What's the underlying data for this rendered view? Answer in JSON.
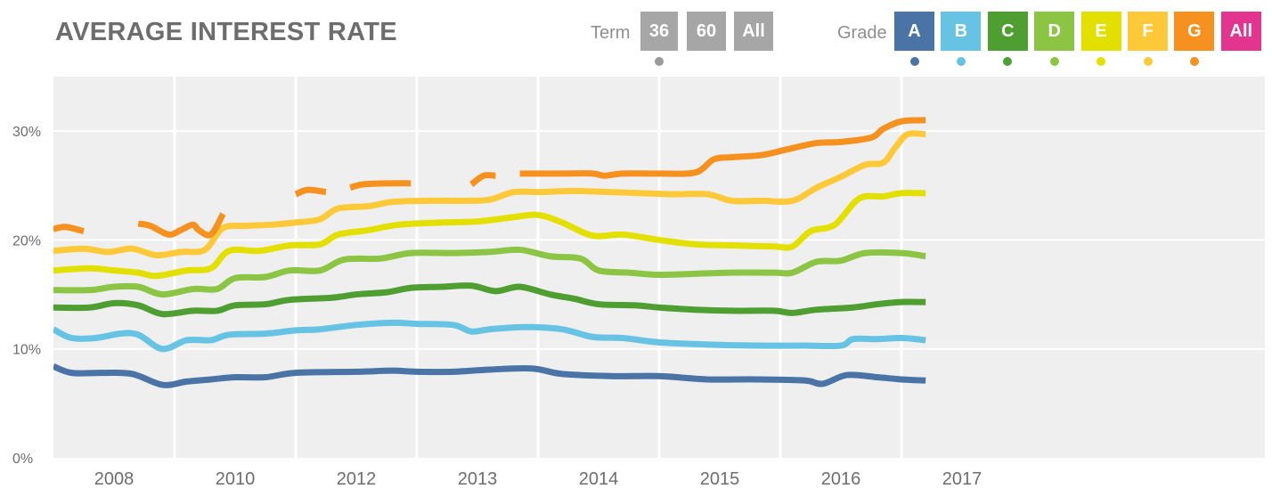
{
  "title": "AVERAGE INTEREST RATE",
  "term": {
    "label": "Term",
    "options": [
      "36",
      "60",
      "All"
    ],
    "button_color": "#a6a6a6",
    "indicator_color": "#9a9a9a"
  },
  "grade": {
    "label": "Grade",
    "options": [
      {
        "label": "A",
        "color": "#4a73a6"
      },
      {
        "label": "B",
        "color": "#67c3e3"
      },
      {
        "label": "C",
        "color": "#4f9e32"
      },
      {
        "label": "D",
        "color": "#8cc443"
      },
      {
        "label": "E",
        "color": "#e3e000"
      },
      {
        "label": "F",
        "color": "#fec938"
      },
      {
        "label": "G",
        "color": "#f6901e"
      },
      {
        "label": "All",
        "color": "#e3358f"
      }
    ]
  },
  "chart_data": {
    "type": "line",
    "ylim": [
      0,
      35
    ],
    "y_ticks": [
      0,
      10,
      20,
      30
    ],
    "y_tick_labels": [
      "0%",
      "10%",
      "20%",
      "30%"
    ],
    "xlim": [
      2007.0,
      2017.0
    ],
    "x_ticks": [
      {
        "value": 2007.5,
        "label": "2008"
      },
      {
        "value": 2008.5,
        "label": "2010"
      },
      {
        "value": 2009.5,
        "label": "2012"
      },
      {
        "value": 2010.5,
        "label": "2013"
      },
      {
        "value": 2011.5,
        "label": "2014"
      },
      {
        "value": 2012.5,
        "label": "2015"
      },
      {
        "value": 2013.5,
        "label": "2016"
      },
      {
        "value": 2014.5,
        "label": "2017"
      }
    ],
    "gridlines_x": [
      2008.0,
      2009.0,
      2010.0,
      2011.0,
      2012.0,
      2013.0,
      2014.0
    ],
    "grid": true,
    "series": [
      {
        "color": "#4a73a6",
        "segments": [
          [
            [
              2007.0,
              8.4
            ],
            [
              2007.15,
              7.8
            ],
            [
              2007.4,
              7.8
            ],
            [
              2007.65,
              7.7
            ],
            [
              2007.9,
              6.7
            ],
            [
              2008.1,
              7.0
            ],
            [
              2008.3,
              7.2
            ],
            [
              2008.5,
              7.4
            ],
            [
              2008.75,
              7.4
            ],
            [
              2009.0,
              7.8
            ],
            [
              2009.5,
              7.9
            ],
            [
              2009.8,
              8.0
            ],
            [
              2010.0,
              7.9
            ],
            [
              2010.3,
              7.9
            ],
            [
              2010.6,
              8.1
            ],
            [
              2010.95,
              8.2
            ],
            [
              2011.2,
              7.7
            ],
            [
              2011.6,
              7.5
            ],
            [
              2012.0,
              7.5
            ],
            [
              2012.4,
              7.2
            ],
            [
              2012.8,
              7.2
            ],
            [
              2013.2,
              7.1
            ],
            [
              2013.35,
              6.8
            ],
            [
              2013.55,
              7.6
            ],
            [
              2013.8,
              7.4
            ],
            [
              2014.0,
              7.2
            ],
            [
              2014.2,
              7.1
            ]
          ]
        ]
      },
      {
        "color": "#67c3e3",
        "segments": [
          [
            [
              2007.0,
              11.8
            ],
            [
              2007.15,
              11.0
            ],
            [
              2007.35,
              11.0
            ],
            [
              2007.55,
              11.4
            ],
            [
              2007.7,
              11.3
            ],
            [
              2007.9,
              10.0
            ],
            [
              2008.1,
              10.8
            ],
            [
              2008.3,
              10.8
            ],
            [
              2008.45,
              11.3
            ],
            [
              2008.75,
              11.4
            ],
            [
              2009.0,
              11.7
            ],
            [
              2009.2,
              11.8
            ],
            [
              2009.5,
              12.2
            ],
            [
              2009.8,
              12.4
            ],
            [
              2010.0,
              12.3
            ],
            [
              2010.3,
              12.2
            ],
            [
              2010.45,
              11.6
            ],
            [
              2010.6,
              11.8
            ],
            [
              2010.9,
              12.0
            ],
            [
              2011.2,
              11.8
            ],
            [
              2011.45,
              11.1
            ],
            [
              2011.7,
              11.0
            ],
            [
              2012.0,
              10.6
            ],
            [
              2012.4,
              10.4
            ],
            [
              2012.8,
              10.3
            ],
            [
              2013.2,
              10.3
            ],
            [
              2013.5,
              10.3
            ],
            [
              2013.6,
              10.9
            ],
            [
              2013.8,
              10.9
            ],
            [
              2014.0,
              11.0
            ],
            [
              2014.2,
              10.8
            ]
          ]
        ]
      },
      {
        "color": "#4f9e32",
        "segments": [
          [
            [
              2007.0,
              13.8
            ],
            [
              2007.3,
              13.8
            ],
            [
              2007.5,
              14.2
            ],
            [
              2007.7,
              14.0
            ],
            [
              2007.9,
              13.2
            ],
            [
              2008.15,
              13.5
            ],
            [
              2008.35,
              13.5
            ],
            [
              2008.5,
              14.0
            ],
            [
              2008.75,
              14.1
            ],
            [
              2008.95,
              14.5
            ],
            [
              2009.3,
              14.7
            ],
            [
              2009.5,
              15.0
            ],
            [
              2009.75,
              15.2
            ],
            [
              2009.95,
              15.6
            ],
            [
              2010.2,
              15.7
            ],
            [
              2010.45,
              15.8
            ],
            [
              2010.65,
              15.3
            ],
            [
              2010.85,
              15.7
            ],
            [
              2011.1,
              15.0
            ],
            [
              2011.3,
              14.6
            ],
            [
              2011.5,
              14.1
            ],
            [
              2011.8,
              14.0
            ],
            [
              2012.0,
              13.8
            ],
            [
              2012.3,
              13.6
            ],
            [
              2012.6,
              13.5
            ],
            [
              2012.95,
              13.5
            ],
            [
              2013.1,
              13.3
            ],
            [
              2013.3,
              13.6
            ],
            [
              2013.6,
              13.8
            ],
            [
              2013.8,
              14.1
            ],
            [
              2014.0,
              14.3
            ],
            [
              2014.2,
              14.3
            ]
          ]
        ]
      },
      {
        "color": "#8cc443",
        "segments": [
          [
            [
              2007.0,
              15.4
            ],
            [
              2007.3,
              15.4
            ],
            [
              2007.5,
              15.7
            ],
            [
              2007.7,
              15.7
            ],
            [
              2007.9,
              15.0
            ],
            [
              2008.15,
              15.5
            ],
            [
              2008.35,
              15.5
            ],
            [
              2008.5,
              16.5
            ],
            [
              2008.75,
              16.6
            ],
            [
              2008.95,
              17.2
            ],
            [
              2009.2,
              17.2
            ],
            [
              2009.4,
              18.2
            ],
            [
              2009.7,
              18.3
            ],
            [
              2009.95,
              18.8
            ],
            [
              2010.3,
              18.8
            ],
            [
              2010.6,
              18.9
            ],
            [
              2010.85,
              19.1
            ],
            [
              2011.1,
              18.5
            ],
            [
              2011.35,
              18.3
            ],
            [
              2011.5,
              17.2
            ],
            [
              2011.75,
              17.0
            ],
            [
              2012.0,
              16.8
            ],
            [
              2012.3,
              16.9
            ],
            [
              2012.6,
              17.0
            ],
            [
              2012.95,
              17.0
            ],
            [
              2013.1,
              17.0
            ],
            [
              2013.3,
              18.0
            ],
            [
              2013.5,
              18.1
            ],
            [
              2013.7,
              18.8
            ],
            [
              2014.0,
              18.8
            ],
            [
              2014.2,
              18.5
            ]
          ]
        ]
      },
      {
        "color": "#e3e000",
        "segments": [
          [
            [
              2007.0,
              17.2
            ],
            [
              2007.3,
              17.4
            ],
            [
              2007.5,
              17.2
            ],
            [
              2007.7,
              17.0
            ],
            [
              2007.85,
              16.7
            ],
            [
              2008.1,
              17.2
            ],
            [
              2008.3,
              17.4
            ],
            [
              2008.45,
              19.0
            ],
            [
              2008.7,
              19.0
            ],
            [
              2008.95,
              19.5
            ],
            [
              2009.2,
              19.6
            ],
            [
              2009.35,
              20.5
            ],
            [
              2009.6,
              20.9
            ],
            [
              2009.85,
              21.4
            ],
            [
              2010.2,
              21.6
            ],
            [
              2010.5,
              21.7
            ],
            [
              2010.8,
              22.1
            ],
            [
              2011.0,
              22.3
            ],
            [
              2011.2,
              21.6
            ],
            [
              2011.45,
              20.4
            ],
            [
              2011.7,
              20.5
            ],
            [
              2012.0,
              20.0
            ],
            [
              2012.3,
              19.6
            ],
            [
              2012.6,
              19.5
            ],
            [
              2012.95,
              19.4
            ],
            [
              2013.1,
              19.4
            ],
            [
              2013.25,
              20.8
            ],
            [
              2013.45,
              21.4
            ],
            [
              2013.65,
              23.8
            ],
            [
              2013.85,
              24.0
            ],
            [
              2014.0,
              24.3
            ],
            [
              2014.2,
              24.3
            ]
          ]
        ]
      },
      {
        "color": "#fec938",
        "segments": [
          [
            [
              2007.0,
              19.0
            ],
            [
              2007.25,
              19.2
            ],
            [
              2007.45,
              18.9
            ],
            [
              2007.65,
              19.2
            ],
            [
              2007.85,
              18.6
            ],
            [
              2008.05,
              18.9
            ],
            [
              2008.25,
              19.1
            ],
            [
              2008.4,
              21.1
            ],
            [
              2008.6,
              21.3
            ],
            [
              2008.8,
              21.4
            ],
            [
              2009.0,
              21.6
            ],
            [
              2009.2,
              21.9
            ],
            [
              2009.35,
              22.9
            ],
            [
              2009.6,
              23.1
            ],
            [
              2009.8,
              23.5
            ],
            [
              2010.1,
              23.6
            ],
            [
              2010.4,
              23.6
            ],
            [
              2010.6,
              23.7
            ],
            [
              2010.8,
              24.4
            ],
            [
              2011.0,
              24.4
            ],
            [
              2011.3,
              24.5
            ],
            [
              2011.6,
              24.4
            ],
            [
              2011.85,
              24.3
            ],
            [
              2012.1,
              24.2
            ],
            [
              2012.4,
              24.2
            ],
            [
              2012.6,
              23.6
            ],
            [
              2012.85,
              23.6
            ],
            [
              2013.1,
              23.6
            ],
            [
              2013.3,
              24.8
            ],
            [
              2013.5,
              25.8
            ],
            [
              2013.7,
              26.9
            ],
            [
              2013.85,
              27.1
            ],
            [
              2013.95,
              28.5
            ],
            [
              2014.05,
              29.7
            ],
            [
              2014.2,
              29.7
            ]
          ]
        ]
      },
      {
        "color": "#f6901e",
        "segments": [
          [
            [
              2007.0,
              21.0
            ],
            [
              2007.1,
              21.2
            ],
            [
              2007.25,
              20.8
            ]
          ],
          [
            [
              2007.7,
              21.5
            ],
            [
              2007.8,
              21.3
            ],
            [
              2007.95,
              20.5
            ],
            [
              2008.05,
              20.9
            ],
            [
              2008.15,
              21.4
            ],
            [
              2008.2,
              20.9
            ],
            [
              2008.3,
              20.5
            ],
            [
              2008.4,
              22.4
            ]
          ],
          [
            [
              2009.0,
              24.2
            ],
            [
              2009.1,
              24.6
            ],
            [
              2009.25,
              24.4
            ]
          ],
          [
            [
              2009.45,
              24.8
            ],
            [
              2009.55,
              25.1
            ],
            [
              2009.75,
              25.2
            ],
            [
              2009.95,
              25.2
            ]
          ],
          [
            [
              2010.45,
              25.1
            ],
            [
              2010.55,
              25.9
            ],
            [
              2010.65,
              25.9
            ]
          ],
          [
            [
              2010.85,
              26.1
            ],
            [
              2011.2,
              26.1
            ],
            [
              2011.45,
              26.1
            ],
            [
              2011.55,
              25.9
            ],
            [
              2011.7,
              26.1
            ],
            [
              2012.0,
              26.1
            ],
            [
              2012.3,
              26.2
            ],
            [
              2012.45,
              27.4
            ],
            [
              2012.6,
              27.6
            ],
            [
              2012.85,
              27.8
            ],
            [
              2013.05,
              28.3
            ],
            [
              2013.3,
              28.9
            ],
            [
              2013.5,
              29.0
            ],
            [
              2013.75,
              29.4
            ],
            [
              2013.85,
              30.2
            ],
            [
              2014.0,
              30.9
            ],
            [
              2014.2,
              31.0
            ]
          ]
        ]
      }
    ]
  }
}
